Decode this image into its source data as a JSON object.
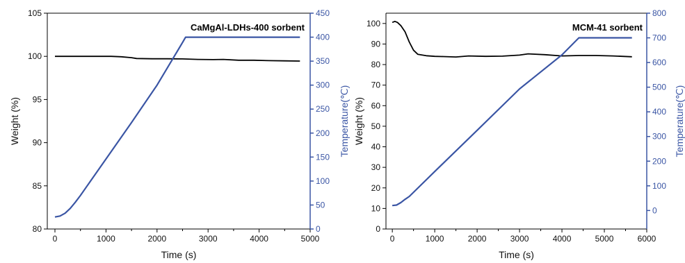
{
  "colors": {
    "weight": "#000000",
    "temperature": "#3a55a4",
    "axis": "#000000"
  },
  "chart_data": [
    {
      "type": "line",
      "title": "CaMgAl-LDHs-400 sorbent",
      "xlabel": "Time (s)",
      "ylabel": "Weight (%)",
      "y2label": "Temperature(℃)",
      "xlim": [
        -150,
        5000
      ],
      "ylim": [
        80,
        105
      ],
      "y2lim": [
        0,
        450
      ],
      "x_ticks": [
        0,
        1000,
        2000,
        3000,
        4000,
        5000
      ],
      "y_ticks": [
        80,
        85,
        90,
        95,
        100,
        105
      ],
      "y2_ticks": [
        0,
        50,
        100,
        150,
        200,
        250,
        300,
        350,
        400,
        450
      ],
      "grid": false,
      "series": [
        {
          "axis": "left",
          "color": "#000000",
          "x": [
            0,
            400,
            800,
            1100,
            1300,
            1500,
            1600,
            1900,
            2200,
            2500,
            2800,
            3100,
            3300,
            3600,
            3900,
            4200,
            4500,
            4800
          ],
          "y": [
            100.0,
            100.0,
            100.0,
            100.0,
            99.95,
            99.85,
            99.75,
            99.72,
            99.72,
            99.7,
            99.65,
            99.62,
            99.65,
            99.55,
            99.55,
            99.5,
            99.48,
            99.45
          ]
        },
        {
          "axis": "right",
          "color": "#3a55a4",
          "x": [
            0,
            100,
            200,
            300,
            400,
            500,
            1000,
            1500,
            2000,
            2500,
            2560,
            3000,
            3500,
            4000,
            4500,
            4800
          ],
          "y": [
            25,
            27,
            33,
            43,
            56,
            70,
            146,
            222,
            300,
            389,
            400,
            400,
            400,
            400,
            400,
            400
          ]
        }
      ]
    },
    {
      "type": "line",
      "title": "MCM-41 sorbent",
      "xlabel": "Time (s)",
      "ylabel": "Weight (%)",
      "y2label": "Temperature(℃)",
      "xlim": [
        -150,
        6000
      ],
      "ylim": [
        0,
        105
      ],
      "y2lim": [
        -75,
        800
      ],
      "x_ticks": [
        0,
        1000,
        2000,
        3000,
        4000,
        5000,
        6000
      ],
      "y_ticks": [
        0,
        10,
        20,
        30,
        40,
        50,
        60,
        70,
        80,
        90,
        100
      ],
      "y2_ticks": [
        0,
        100,
        200,
        300,
        400,
        500,
        600,
        700,
        800
      ],
      "grid": false,
      "series": [
        {
          "axis": "left",
          "color": "#000000",
          "x": [
            0,
            60,
            120,
            200,
            300,
            400,
            500,
            600,
            800,
            1000,
            1200,
            1500,
            1800,
            2200,
            2600,
            3000,
            3200,
            3600,
            4000,
            4400,
            4800,
            5200,
            5650
          ],
          "y": [
            100.5,
            101,
            100.5,
            99,
            96,
            91,
            87,
            85,
            84.3,
            84,
            83.9,
            83.7,
            84.2,
            84.0,
            84.1,
            84.6,
            85.2,
            84.8,
            84.2,
            84.4,
            84.4,
            84.2,
            83.8
          ]
        },
        {
          "axis": "right",
          "color": "#3a55a4",
          "x": [
            0,
            100,
            200,
            300,
            400,
            1000,
            2000,
            3000,
            4000,
            4400,
            5000,
            5650
          ],
          "y": [
            20,
            22,
            32,
            45,
            57,
            158,
            325,
            493,
            631,
            700,
            700,
            700
          ]
        }
      ]
    }
  ]
}
